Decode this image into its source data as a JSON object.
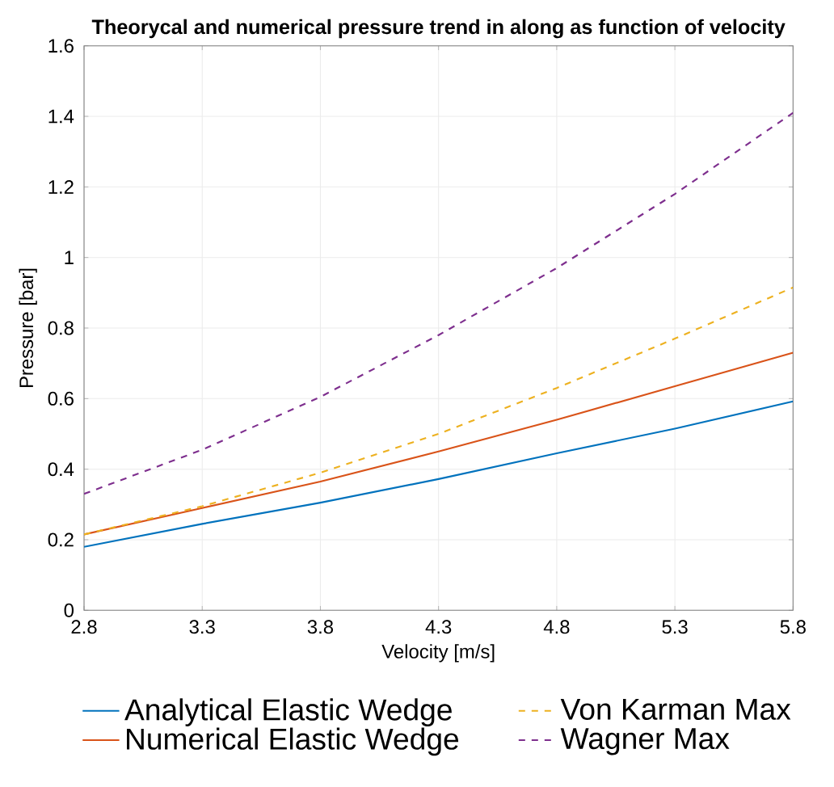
{
  "chart_data": {
    "type": "line",
    "title": "Theorycal and numerical pressure trend in along as function of velocity",
    "xlabel": "Velocity [m/s]",
    "ylabel": "Pressure [bar]",
    "x": [
      2.8,
      3.3,
      3.8,
      4.3,
      4.8,
      5.3,
      5.8
    ],
    "series": [
      {
        "name": "Analytical Elastic Wedge",
        "color": "#0072bd",
        "line_style": "solid",
        "values": [
          0.18,
          0.245,
          0.305,
          0.372,
          0.445,
          0.515,
          0.592
        ]
      },
      {
        "name": "Numerical Elastic Wedge",
        "color": "#d95319",
        "line_style": "solid",
        "values": [
          0.215,
          0.29,
          0.365,
          0.45,
          0.54,
          0.635,
          0.73
        ]
      },
      {
        "name": "Von Karman Max",
        "color": "#edb120",
        "line_style": "dashed",
        "values": [
          0.215,
          0.295,
          0.39,
          0.5,
          0.63,
          0.77,
          0.915
        ]
      },
      {
        "name": "Wagner Max",
        "color": "#7e2f8e",
        "line_style": "dashed",
        "values": [
          0.33,
          0.455,
          0.605,
          0.78,
          0.97,
          1.18,
          1.41
        ]
      }
    ],
    "xlim": [
      2.8,
      5.8
    ],
    "xticks": [
      2.8,
      3.3,
      3.8,
      4.3,
      4.8,
      5.3,
      5.8
    ],
    "ylim": [
      0,
      1.6
    ],
    "yticks": [
      0,
      0.2,
      0.4,
      0.6,
      0.8,
      1,
      1.2,
      1.4,
      1.6
    ],
    "grid": true,
    "legend": "bottom"
  }
}
